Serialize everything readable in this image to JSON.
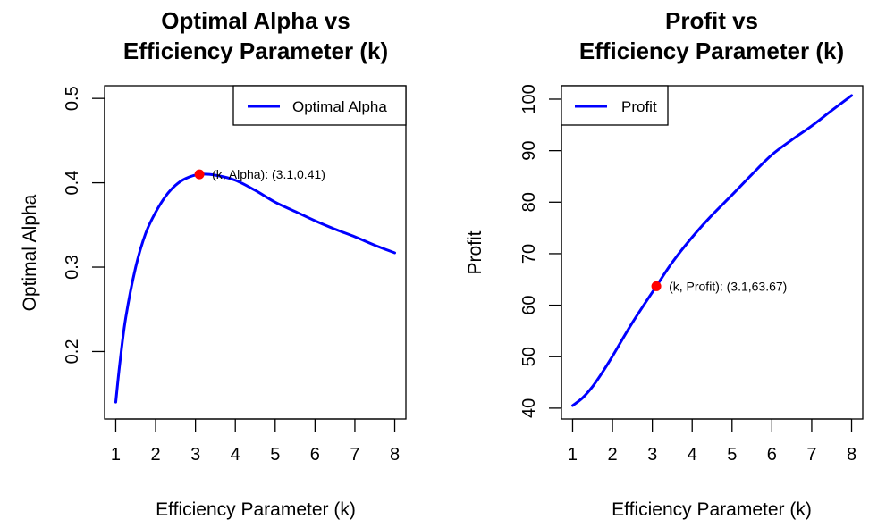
{
  "chart_data": [
    {
      "type": "line",
      "title": [
        "Optimal Alpha vs",
        "Efficiency Parameter (k)"
      ],
      "xlabel": "Efficiency Parameter (k)",
      "ylabel": "Optimal Alpha",
      "xlim": [
        0.72,
        8.28
      ],
      "ylim": [
        0.12,
        0.515
      ],
      "x_ticks": [
        1,
        2,
        3,
        4,
        5,
        6,
        7,
        8
      ],
      "y_ticks": [
        0.2,
        0.3,
        0.4,
        0.5
      ],
      "y_tick_labels": [
        "0.2",
        "0.3",
        "0.4",
        "0.5"
      ],
      "legend": {
        "position": "top-right",
        "entries": [
          "Optimal Alpha"
        ]
      },
      "series": [
        {
          "name": "Optimal Alpha",
          "color": "#0000ff",
          "x": [
            1.0,
            1.1,
            1.25,
            1.5,
            1.75,
            2.0,
            2.25,
            2.5,
            2.75,
            3.1,
            3.5,
            4.0,
            4.5,
            5.0,
            5.5,
            6.0,
            6.5,
            7.0,
            7.5,
            8.0
          ],
          "y": [
            0.14,
            0.185,
            0.24,
            0.3,
            0.34,
            0.365,
            0.384,
            0.397,
            0.405,
            0.41,
            0.409,
            0.403,
            0.391,
            0.377,
            0.366,
            0.355,
            0.345,
            0.336,
            0.326,
            0.317
          ]
        }
      ],
      "highlight": {
        "x": 3.1,
        "y": 0.41,
        "color": "#ff0000",
        "label": "(k, Alpha): (3.1,0.41)"
      }
    },
    {
      "type": "line",
      "title": [
        "Profit vs",
        "Efficiency Parameter (k)"
      ],
      "xlabel": "Efficiency Parameter (k)",
      "ylabel": "Profit",
      "xlim": [
        0.72,
        8.28
      ],
      "ylim": [
        37.9,
        102.6
      ],
      "x_ticks": [
        1,
        2,
        3,
        4,
        5,
        6,
        7,
        8
      ],
      "y_ticks": [
        40,
        50,
        60,
        70,
        80,
        90,
        100
      ],
      "y_tick_labels": [
        "40",
        "50",
        "60",
        "70",
        "80",
        "90",
        "100"
      ],
      "legend": {
        "position": "top-left",
        "entries": [
          "Profit"
        ]
      },
      "series": [
        {
          "name": "Profit",
          "color": "#0000ff",
          "x": [
            1.0,
            1.25,
            1.5,
            1.75,
            2.0,
            2.5,
            3.1,
            3.5,
            4.0,
            4.5,
            5.0,
            5.5,
            6.0,
            6.5,
            7.0,
            7.5,
            8.0
          ],
          "y": [
            40.5,
            42.0,
            44.2,
            47.0,
            50.1,
            56.6,
            63.67,
            68.3,
            73.2,
            77.5,
            81.4,
            85.4,
            89.2,
            92.1,
            94.8,
            97.8,
            100.7
          ]
        }
      ],
      "highlight": {
        "x": 3.1,
        "y": 63.67,
        "color": "#ff0000",
        "label": "(k, Profit): (3.1,63.67)"
      }
    }
  ]
}
